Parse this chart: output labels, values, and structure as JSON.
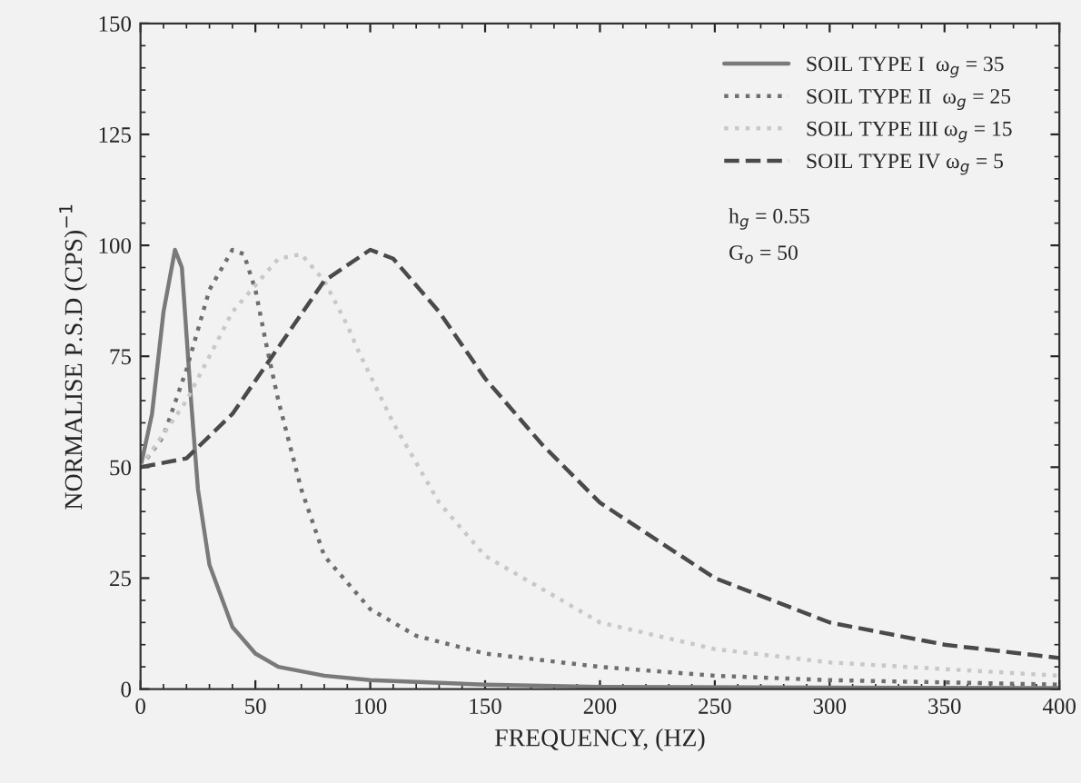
{
  "chart_data": {
    "type": "line",
    "xlabel": "FREQUENCY, (HZ)",
    "ylabel": "NORMALISE P.S.D (CPS)$^{−1}$",
    "xlim": [
      0,
      400
    ],
    "xticks": [
      0,
      50,
      100,
      150,
      200,
      250,
      300,
      350,
      400
    ],
    "ylim": [
      0,
      150
    ],
    "yticks": [
      0,
      25,
      50,
      75,
      100,
      125,
      150
    ],
    "grid": false,
    "legend": "top right",
    "marker": "none",
    "series": [
      {
        "name": "SOIL TYPE I  ω$_{g}$ = 35",
        "color": "#7a7a7a",
        "line_style": "solid",
        "x": [
          0,
          5,
          10,
          15,
          18,
          20,
          22,
          25,
          30,
          40,
          50,
          60,
          80,
          100,
          150,
          200,
          300,
          400
        ],
        "values": [
          50,
          62,
          85,
          99,
          95,
          80,
          65,
          45,
          28,
          14,
          8,
          5,
          3,
          2,
          1,
          0.5,
          0.3,
          0.2
        ]
      },
      {
        "name": "SOIL TYPE II  ω$_{g}$ = 25",
        "color": "#6e6e6e",
        "line_style": "dotted",
        "x": [
          0,
          10,
          20,
          30,
          40,
          45,
          50,
          55,
          60,
          70,
          80,
          100,
          120,
          150,
          200,
          250,
          300,
          400
        ],
        "values": [
          50,
          57,
          72,
          90,
          99,
          98,
          90,
          77,
          65,
          45,
          30,
          18,
          12,
          8,
          5,
          3,
          2,
          1
        ]
      },
      {
        "name": "SOIL TYPE III ω$_{g}$ = 15",
        "color": "#c8c8c8",
        "line_style": "dotted",
        "x": [
          0,
          20,
          40,
          60,
          70,
          80,
          90,
          95,
          110,
          130,
          150,
          200,
          250,
          300,
          400
        ],
        "values": [
          50,
          65,
          85,
          97,
          98,
          92,
          82,
          76,
          60,
          42,
          30,
          15,
          9,
          6,
          3
        ]
      },
      {
        "name": "SOIL TYPE IV ω$_{g}$ = 5",
        "color": "#4a4a4a",
        "line_style": "dashed",
        "x": [
          0,
          20,
          40,
          60,
          80,
          100,
          110,
          130,
          150,
          175,
          200,
          250,
          300,
          350,
          400
        ],
        "values": [
          50,
          52,
          62,
          77,
          92,
          99,
          97,
          85,
          70,
          55,
          42,
          25,
          15,
          10,
          7
        ]
      }
    ],
    "annotations": [
      "h$_{g}$ = 0.55",
      "G$_{o}$ = 50"
    ]
  }
}
